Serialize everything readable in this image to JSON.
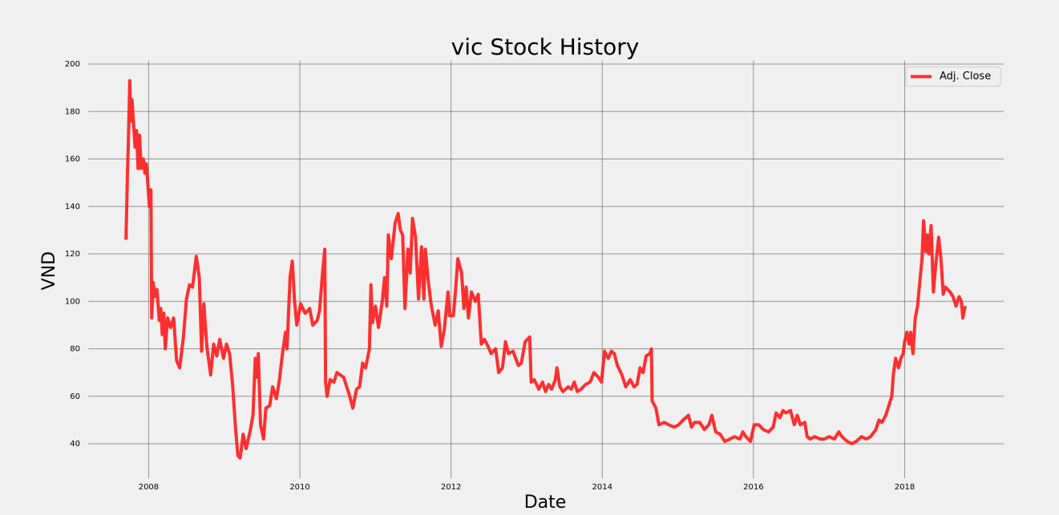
{
  "chart_data": {
    "type": "line",
    "title": "vic Stock History",
    "xlabel": "Date",
    "ylabel": "VND",
    "x": [
      2007.7,
      2007.71,
      2007.72,
      2007.73,
      2007.75,
      2007.76,
      2007.78,
      2007.8,
      2007.82,
      2007.84,
      2007.86,
      2007.88,
      2007.9,
      2007.93,
      2007.95,
      2007.97,
      2008.01,
      2008.03,
      2008.04,
      2008.06,
      2008.08,
      2008.11,
      2008.14,
      2008.16,
      2008.18,
      2008.2,
      2008.22,
      2008.25,
      2008.29,
      2008.33,
      2008.37,
      2008.41,
      2008.46,
      2008.5,
      2008.54,
      2008.58,
      2008.63,
      2008.67,
      2008.7,
      2008.73,
      2008.77,
      2008.82,
      2008.86,
      2008.9,
      2008.94,
      2008.99,
      2009.03,
      2009.07,
      2009.11,
      2009.15,
      2009.18,
      2009.21,
      2009.25,
      2009.29,
      2009.34,
      2009.38,
      2009.41,
      2009.43,
      2009.45,
      2009.48,
      2009.52,
      2009.55,
      2009.6,
      2009.64,
      2009.69,
      2009.73,
      2009.77,
      2009.81,
      2009.83,
      2009.87,
      2009.9,
      2009.93,
      2009.96,
      2010.01,
      2010.07,
      2010.13,
      2010.17,
      2010.23,
      2010.26,
      2010.3,
      2010.33,
      2010.34,
      2010.36,
      2010.4,
      2010.45,
      2010.49,
      2010.58,
      2010.62,
      2010.66,
      2010.7,
      2010.75,
      2010.79,
      2010.83,
      2010.87,
      2010.92,
      2010.94,
      2010.96,
      2011.0,
      2011.04,
      2011.09,
      2011.12,
      2011.15,
      2011.17,
      2011.21,
      2011.26,
      2011.3,
      2011.33,
      2011.36,
      2011.39,
      2011.43,
      2011.46,
      2011.49,
      2011.53,
      2011.57,
      2011.61,
      2011.64,
      2011.66,
      2011.7,
      2011.74,
      2011.79,
      2011.83,
      2011.87,
      2011.91,
      2011.96,
      2011.98,
      2012.03,
      2012.06,
      2012.09,
      2012.14,
      2012.17,
      2012.2,
      2012.23,
      2012.27,
      2012.32,
      2012.36,
      2012.4,
      2012.44,
      2012.49,
      2012.53,
      2012.59,
      2012.63,
      2012.68,
      2012.72,
      2012.76,
      2012.82,
      2012.89,
      2012.93,
      2012.98,
      2013.04,
      2013.06,
      2013.1,
      2013.16,
      2013.21,
      2013.25,
      2013.29,
      2013.33,
      2013.38,
      2013.4,
      2013.44,
      2013.48,
      2013.55,
      2013.59,
      2013.63,
      2013.67,
      2013.72,
      2013.78,
      2013.84,
      2013.89,
      2013.95,
      2013.99,
      2014.03,
      2014.08,
      2014.12,
      2014.16,
      2014.2,
      2014.26,
      2014.31,
      2014.37,
      2014.42,
      2014.46,
      2014.5,
      2014.54,
      2014.58,
      2014.63,
      2014.65,
      2014.66,
      2014.71,
      2014.75,
      2014.82,
      2014.88,
      2014.95,
      2015.01,
      2015.07,
      2015.14,
      2015.18,
      2015.22,
      2015.29,
      2015.35,
      2015.41,
      2015.45,
      2015.5,
      2015.56,
      2015.62,
      2015.69,
      2015.75,
      2015.82,
      2015.86,
      2015.9,
      2015.96,
      2016.01,
      2016.07,
      2016.13,
      2016.2,
      2016.26,
      2016.3,
      2016.35,
      2016.39,
      2016.43,
      2016.49,
      2016.54,
      2016.58,
      2016.62,
      2016.68,
      2016.71,
      2016.75,
      2016.81,
      2016.88,
      2016.94,
      2017.0,
      2017.07,
      2017.13,
      2017.17,
      2017.24,
      2017.3,
      2017.36,
      2017.43,
      2017.49,
      2017.55,
      2017.62,
      2017.66,
      2017.7,
      2017.75,
      2017.79,
      2017.83,
      2017.85,
      2017.88,
      2017.92,
      2017.95,
      2017.98,
      2018.0,
      2018.03,
      2018.06,
      2018.08,
      2018.11,
      2018.14,
      2018.17,
      2018.2,
      2018.23,
      2018.25,
      2018.28,
      2018.3,
      2018.32,
      2018.35,
      2018.38,
      2018.41,
      2018.45,
      2018.48,
      2018.51,
      2018.54,
      2018.57,
      2018.6,
      2018.64,
      2018.68,
      2018.72,
      2018.75,
      2018.77,
      2018.8
    ],
    "series": [
      {
        "name": "Adj. Close",
        "color": "#ff1a1a",
        "values": [
          126,
          140,
          155,
          165,
          193,
          176,
          185,
          175,
          165,
          172,
          156,
          170,
          156,
          160,
          154,
          158,
          140,
          147,
          93,
          108,
          102,
          105,
          92,
          97,
          86,
          95,
          80,
          93,
          89,
          93,
          75,
          72,
          85,
          101,
          107,
          106,
          119,
          110,
          79,
          99,
          81,
          69,
          82,
          77,
          84,
          76,
          82,
          78,
          65,
          46,
          35,
          34,
          44,
          38,
          45,
          52,
          76,
          68,
          78,
          48,
          42,
          55,
          56,
          64,
          59,
          67,
          78,
          87,
          80,
          110,
          117,
          100,
          90,
          99,
          95,
          97,
          90,
          92,
          96,
          112,
          122,
          66,
          60,
          67,
          66,
          70,
          68,
          64,
          60,
          55,
          63,
          64,
          74,
          72,
          80,
          107,
          91,
          98,
          89,
          100,
          110,
          98,
          128,
          118,
          133,
          137,
          130,
          128,
          97,
          122,
          112,
          135,
          127,
          101,
          123,
          101,
          122,
          108,
          98,
          90,
          96,
          81,
          88,
          104,
          94,
          94,
          105,
          118,
          112,
          97,
          106,
          93,
          104,
          100,
          103,
          82,
          84,
          81,
          78,
          80,
          70,
          72,
          83,
          78,
          79,
          73,
          74,
          83,
          85,
          66,
          67,
          63,
          66,
          62,
          65,
          63,
          67,
          72,
          64,
          62,
          64,
          63,
          66,
          62,
          63,
          65,
          66,
          70,
          68,
          66,
          79,
          76,
          79,
          78,
          73,
          69,
          64,
          67,
          64,
          65,
          72,
          70,
          77,
          78,
          80,
          58,
          55,
          48,
          49,
          48,
          47,
          48,
          50,
          52,
          47,
          49,
          49,
          46,
          48,
          52,
          45,
          44,
          41,
          42,
          43,
          42,
          45,
          43,
          41,
          48,
          48,
          46,
          45,
          47,
          53,
          51,
          54,
          53,
          54,
          48,
          52,
          48,
          49,
          43,
          42,
          43,
          42,
          42,
          43,
          42,
          45,
          43,
          41,
          40,
          41,
          43,
          42,
          43,
          46,
          50,
          49,
          52,
          56,
          60,
          69,
          76,
          72,
          76,
          78,
          83,
          87,
          82,
          87,
          78,
          93,
          98,
          108,
          118,
          134,
          121,
          128,
          120,
          132,
          104,
          115,
          127,
          118,
          103,
          106,
          105,
          104,
          102,
          98,
          102,
          100,
          93,
          98
        ]
      }
    ],
    "xlim": [
      2007.2,
      2019.31
    ],
    "ylim": [
      25.5,
      201.5
    ],
    "xticks": [
      2008,
      2010,
      2012,
      2014,
      2016,
      2018
    ],
    "yticks": [
      40,
      60,
      80,
      100,
      120,
      140,
      160,
      180,
      200
    ],
    "grid": true,
    "legend": "upper right"
  }
}
